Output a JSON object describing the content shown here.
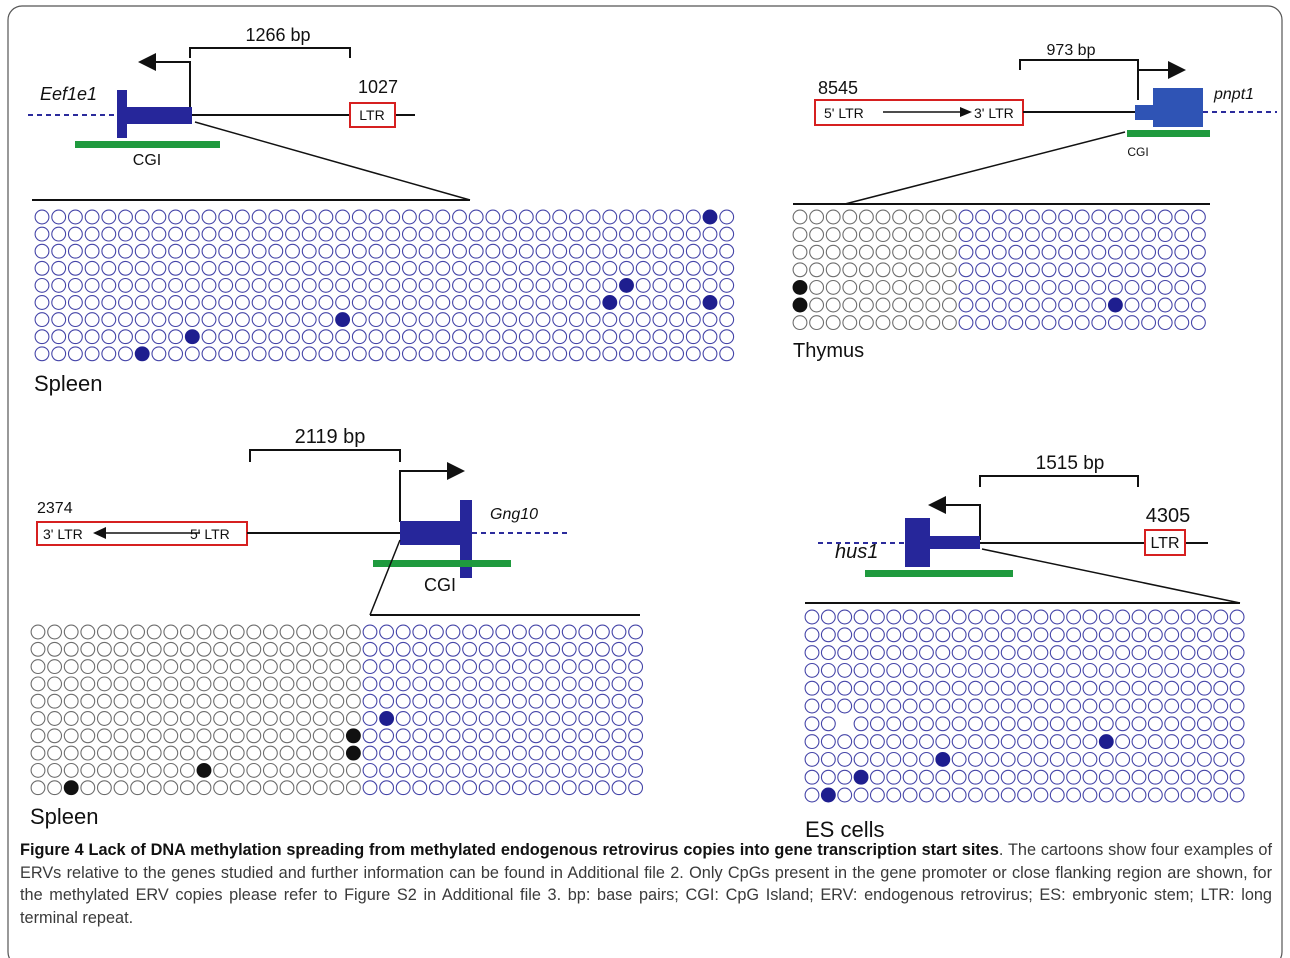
{
  "panels": [
    {
      "distance": "1266 bp",
      "gene": "Eef1e1",
      "erv_id": "1027",
      "ltr": "LTR",
      "cgi": "CGI",
      "tissue": "Spleen"
    },
    {
      "distance": "973 bp",
      "gene": "pnpt1",
      "erv_id": "8545",
      "ltr5": "5' LTR",
      "ltr3": "3' LTR",
      "cgi": "CGI",
      "tissue": "Thymus"
    },
    {
      "distance": "2119 bp",
      "gene": "Gng10",
      "erv_id": "2374",
      "ltr3": "3' LTR",
      "ltr5": "5' LTR",
      "cgi": "CGI",
      "tissue": "Spleen"
    },
    {
      "distance": "1515 bp",
      "gene": "hus1",
      "erv_id": "4305",
      "ltr": "LTR",
      "tissue": "ES cells"
    }
  ],
  "caption": {
    "title": "Figure 4 Lack of DNA methylation spreading from methylated endogenous retrovirus copies into gene transcription start sites",
    "text": ". The cartoons show four examples of ERVs relative to the genes studied and further information can be found in Additional file 2. Only CpGs present in the gene promoter or close flanking region are shown, for the methylated ERV copies please refer to Figure S2 in Additional file 3. bp: base pairs; CGI: CpG Island; ERV: endogenous retrovirus; ES: embryonic stem; LTR: long terminal repeat."
  }
}
